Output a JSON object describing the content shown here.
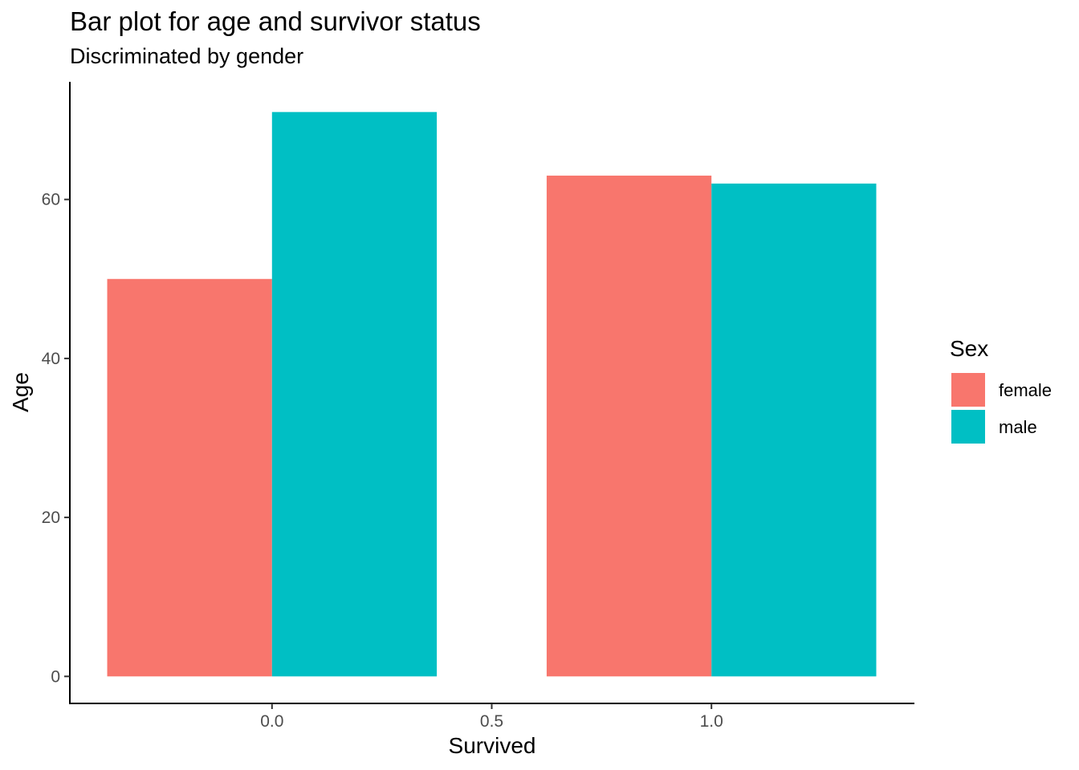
{
  "chart_data": {
    "type": "bar",
    "title": "Bar plot for age and survivor status",
    "subtitle": "Discriminated by gender",
    "xlabel": "Survived",
    "ylabel": "Age",
    "x": [
      0,
      1
    ],
    "xlim": [
      -0.46,
      1.46
    ],
    "ylim": [
      -3.4,
      74.8
    ],
    "xticks": [
      0.0,
      0.5,
      1.0
    ],
    "xtick_labels": [
      "0.0",
      "0.5",
      "1.0"
    ],
    "yticks": [
      0,
      20,
      40,
      60
    ],
    "ytick_labels": [
      "0",
      "20",
      "40",
      "60"
    ],
    "bar_width": 0.75,
    "grid": false,
    "legend": {
      "title": "Sex",
      "placement": "right"
    },
    "series": [
      {
        "name": "female",
        "color": "#F8766D",
        "values": [
          50,
          63
        ]
      },
      {
        "name": "male",
        "color": "#00BFC4",
        "values": [
          71,
          62
        ]
      }
    ]
  }
}
